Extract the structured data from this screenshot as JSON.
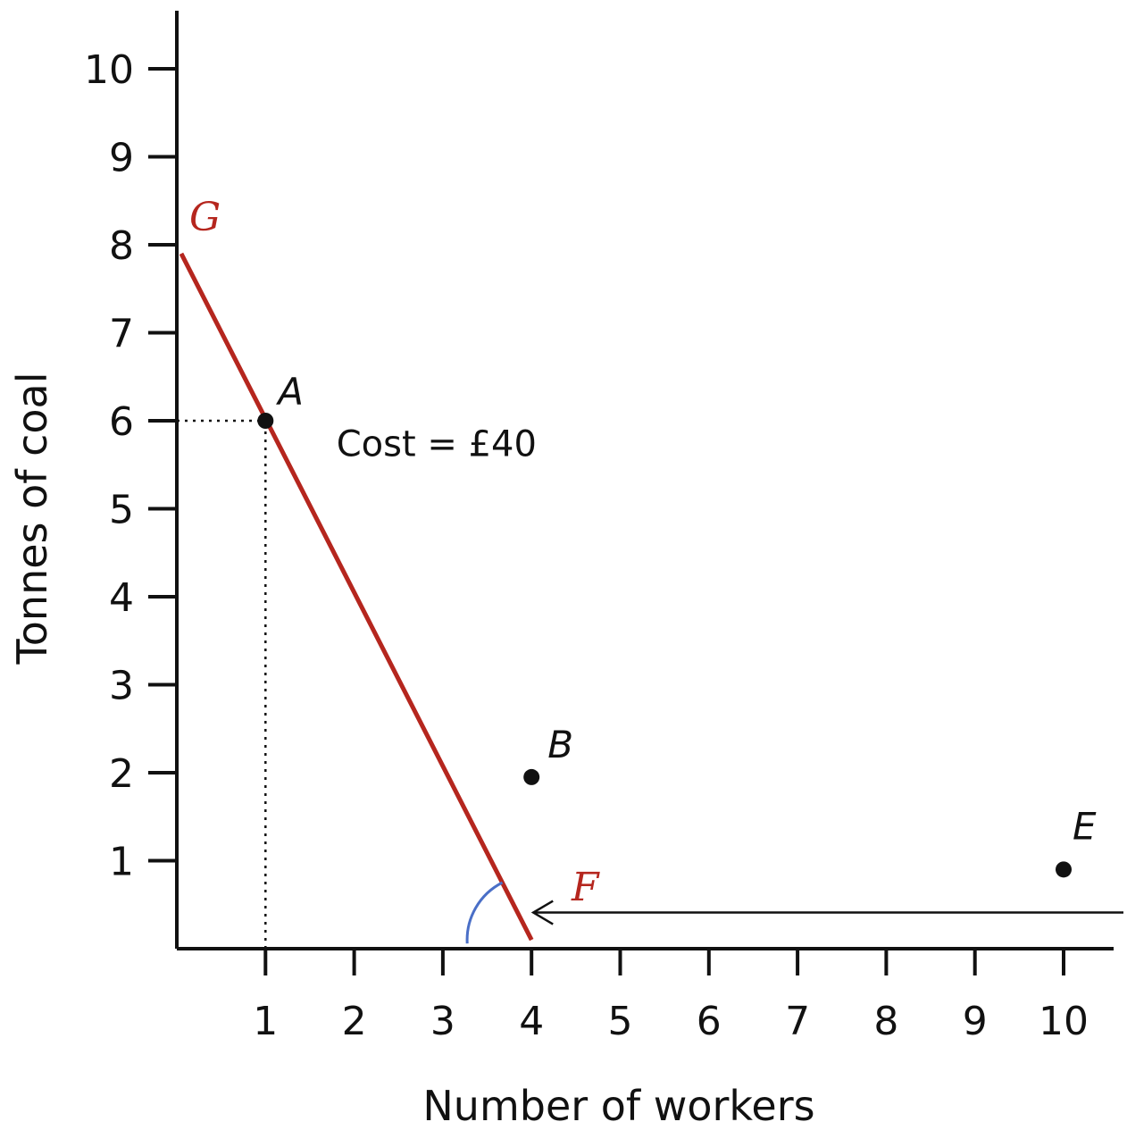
{
  "chart_data": {
    "type": "line",
    "title": "",
    "xlabel": "Number of workers",
    "ylabel": "Tonnes of coal",
    "xlim": [
      0,
      10.5
    ],
    "ylim": [
      0,
      10
    ],
    "x_ticks": [
      1,
      2,
      3,
      4,
      5,
      6,
      7,
      8,
      9,
      10
    ],
    "y_ticks": [
      1,
      2,
      3,
      4,
      5,
      6,
      7,
      8,
      9,
      10
    ],
    "grid": false,
    "isocost_line": {
      "name": "isocost",
      "color": "#b5261e",
      "from": {
        "x": 0.05,
        "y": 7.9
      },
      "to": {
        "x": 4.0,
        "y": 0.1
      },
      "end_labels": {
        "start": "G",
        "end": "F"
      }
    },
    "points": [
      {
        "label": "A",
        "x": 1,
        "y": 6,
        "on_line": true
      },
      {
        "label": "B",
        "x": 4,
        "y": 1.95
      },
      {
        "label": "E",
        "x": 10,
        "y": 0.9
      }
    ],
    "guide_lines": [
      {
        "from": {
          "x": 0,
          "y": 6
        },
        "to": {
          "x": 1,
          "y": 6
        },
        "style": "dotted"
      },
      {
        "from": {
          "x": 1,
          "y": 0
        },
        "to": {
          "x": 1,
          "y": 6
        },
        "style": "dotted"
      }
    ],
    "annotations": [
      {
        "text": "Cost = £40",
        "x": 1.8,
        "y": 5.6
      }
    ],
    "arrow": {
      "from": {
        "x": 10.6,
        "y": 0.35
      },
      "to": {
        "x": 4.0,
        "y": 0.35
      },
      "color": "#111111"
    },
    "angle_arc": {
      "vertex": {
        "x": 4.0,
        "y": 0.1
      },
      "color": "#4a6fc7"
    }
  }
}
